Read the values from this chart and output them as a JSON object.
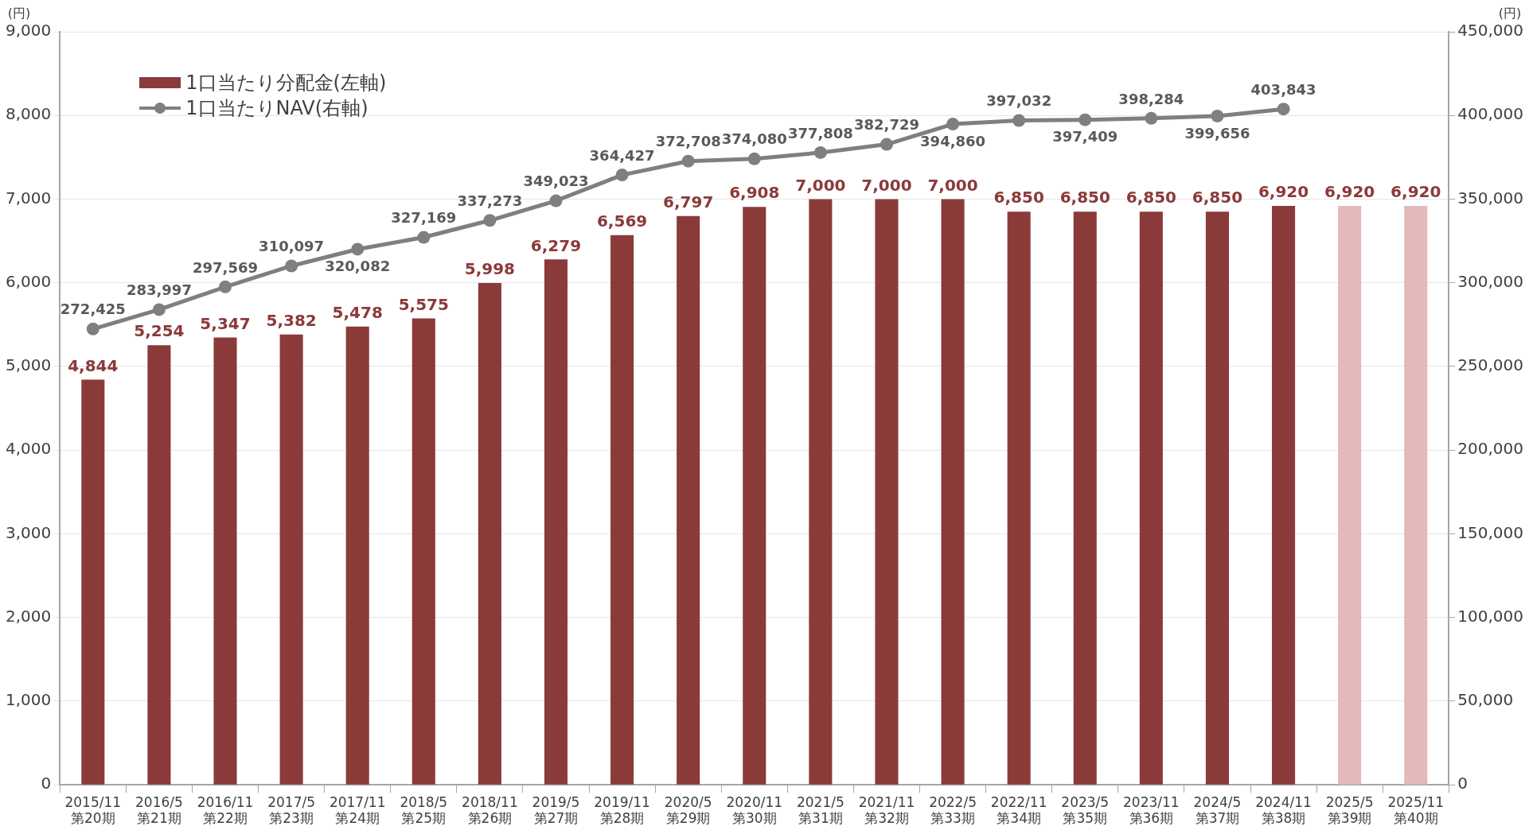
{
  "chart_data": {
    "type": "bar",
    "ylabel": "(円)",
    "y2label": "(円)",
    "categories": [
      "2015/11\n第20期",
      "2016/5\n第21期",
      "2016/11\n第22期",
      "2017/5\n第23期",
      "2017/11\n第24期",
      "2018/5\n第25期",
      "2018/11\n第26期",
      "2019/5\n第27期",
      "2019/11\n第28期",
      "2020/5\n第29期",
      "2020/11\n第30期",
      "2021/5\n第31期",
      "2021/11\n第32期",
      "2022/5\n第33期",
      "2022/11\n第34期",
      "2023/5\n第35期",
      "2023/11\n第36期",
      "2024/5\n第37期",
      "2024/11\n第38期",
      "2025/5\n第39期",
      "2025/11\n第40期"
    ],
    "series": [
      {
        "name": "1口当たり分配金(左軸)",
        "color": "#8b3a3a",
        "colors": [
          "#8b3a3a",
          "#8b3a3a",
          "#8b3a3a",
          "#8b3a3a",
          "#8b3a3a",
          "#8b3a3a",
          "#8b3a3a",
          "#8b3a3a",
          "#8b3a3a",
          "#8b3a3a",
          "#8b3a3a",
          "#8b3a3a",
          "#8b3a3a",
          "#8b3a3a",
          "#8b3a3a",
          "#8b3a3a",
          "#8b3a3a",
          "#8b3a3a",
          "#8b3a3a",
          "#e3b9b9",
          "#e3b9b9"
        ],
        "values": [
          4844,
          5254,
          5347,
          5382,
          5478,
          5575,
          5998,
          6279,
          6569,
          6797,
          6908,
          7000,
          7000,
          7000,
          6850,
          6850,
          6850,
          6850,
          6920,
          6920,
          6920
        ],
        "value_labels": [
          "4,844",
          "5,254",
          "5,347",
          "5,382",
          "5,478",
          "5,575",
          "5,998",
          "6,279",
          "6,569",
          "6,797",
          "6,908",
          "7,000",
          "7,000",
          "7,000",
          "6,850",
          "6,850",
          "6,850",
          "6,850",
          "6,920",
          "6,920",
          "6,920"
        ]
      },
      {
        "name": "1口当たりNAV(右軸)",
        "type": "line",
        "axis": "y2",
        "color": "#7f7f7f",
        "marker": "circle",
        "values": [
          272425,
          283997,
          297569,
          310097,
          320082,
          327169,
          337273,
          349023,
          364427,
          372708,
          374080,
          377808,
          382729,
          394860,
          397032,
          397409,
          398284,
          399656,
          403843,
          null,
          null
        ],
        "value_labels": [
          "272,425",
          "283,997",
          "297,569",
          "310,097",
          "320,082",
          "327,169",
          "337,273",
          "349,023",
          "364,427",
          "372,708",
          "374,080",
          "377,808",
          "382,729",
          "394,860",
          "397,032",
          "397,409",
          "398,284",
          "399,656",
          "403,843",
          null,
          null
        ]
      }
    ],
    "ylim": [
      0,
      9000
    ],
    "yticks": [
      0,
      {
        "value": 1000,
        "label": "1,000"
      },
      {
        "value": 2000,
        "label": "2,000"
      },
      {
        "value": 3000,
        "label": "3,000"
      },
      {
        "value": 4000,
        "label": "4,000"
      },
      {
        "value": 5000,
        "label": "5,000"
      },
      {
        "value": 6000,
        "label": "6,000"
      },
      {
        "value": 7000,
        "label": "7,000"
      },
      {
        "value": 8000,
        "label": "8,000"
      },
      {
        "value": 9000,
        "label": "9,000"
      }
    ],
    "y2lim": [
      0,
      450000
    ],
    "y2ticks": [
      0,
      {
        "value": 50000,
        "label": "50,000"
      },
      {
        "value": 100000,
        "label": "100,000"
      },
      {
        "value": 150000,
        "label": "150,000"
      },
      {
        "value": 200000,
        "label": "200,000"
      },
      {
        "value": 250000,
        "label": "250,000"
      },
      {
        "value": 300000,
        "label": "300,000"
      },
      {
        "value": 350000,
        "label": "350,000"
      },
      {
        "value": 400000,
        "label": "400,000"
      },
      {
        "value": 450000,
        "label": "450,000"
      }
    ],
    "grid": "y",
    "legend": "top left"
  }
}
